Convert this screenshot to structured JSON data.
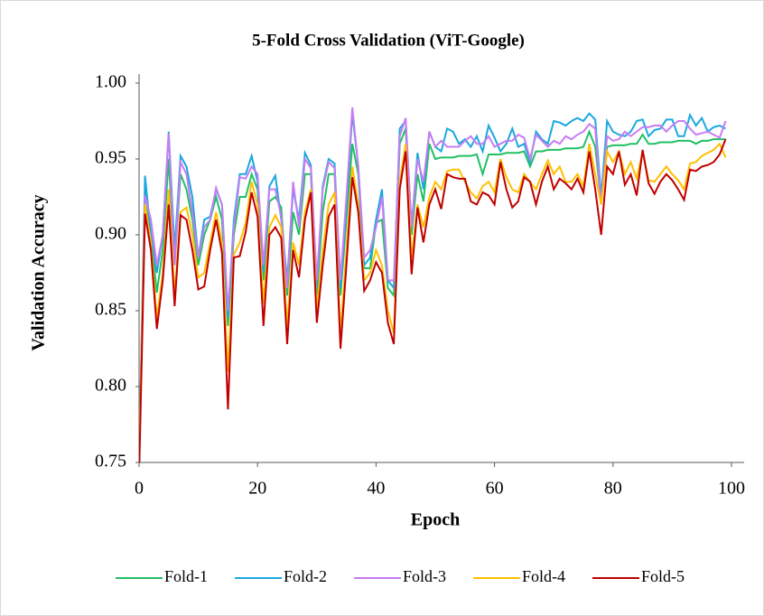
{
  "chart_data": {
    "type": "line",
    "title": "5-Fold Cross Validation (ViT-Google)",
    "x_label": "Epoch",
    "y_label": "Validation Accuracy",
    "xlim": [
      0,
      100
    ],
    "ylim": [
      0.75,
      1.0
    ],
    "xticks": [
      0,
      20,
      40,
      60,
      80,
      100
    ],
    "yticks": [
      {
        "value": 0.75,
        "label": "0.75"
      },
      {
        "value": 0.8,
        "label": "0.80"
      },
      {
        "value": 0.85,
        "label": "0.85"
      },
      {
        "value": 0.9,
        "label": "0.90"
      },
      {
        "value": 0.95,
        "label": "0.95"
      },
      {
        "value": 1.0,
        "label": "1.00"
      }
    ],
    "grid": false,
    "legend": "bottom",
    "x": [
      0,
      1,
      2,
      3,
      4,
      5,
      6,
      7,
      8,
      9,
      10,
      11,
      12,
      13,
      14,
      15,
      16,
      17,
      18,
      19,
      20,
      21,
      22,
      23,
      24,
      25,
      26,
      27,
      28,
      29,
      30,
      31,
      32,
      33,
      34,
      35,
      36,
      37,
      38,
      39,
      40,
      41,
      42,
      43,
      44,
      45,
      46,
      47,
      48,
      49,
      50,
      51,
      52,
      53,
      54,
      55,
      56,
      57,
      58,
      59,
      60,
      61,
      62,
      63,
      64,
      65,
      66,
      67,
      68,
      69,
      70,
      71,
      72,
      73,
      74,
      75,
      76,
      77,
      78,
      79,
      80,
      81,
      82,
      83,
      84,
      85,
      86,
      87,
      88,
      89,
      90,
      91,
      92,
      93,
      94,
      95,
      96,
      97,
      98,
      99
    ],
    "series": [
      {
        "name": "Fold-1",
        "color": "#21c064",
        "values": [
          0.75,
          0.93,
          0.9,
          0.862,
          0.89,
          0.95,
          0.88,
          0.94,
          0.93,
          0.91,
          0.88,
          0.9,
          0.91,
          0.925,
          0.91,
          0.84,
          0.9,
          0.925,
          0.925,
          0.94,
          0.93,
          0.87,
          0.922,
          0.925,
          0.918,
          0.86,
          0.915,
          0.9,
          0.94,
          0.94,
          0.86,
          0.915,
          0.94,
          0.94,
          0.86,
          0.91,
          0.96,
          0.94,
          0.878,
          0.878,
          0.908,
          0.91,
          0.865,
          0.86,
          0.96,
          0.97,
          0.9,
          0.94,
          0.922,
          0.96,
          0.95,
          0.951,
          0.951,
          0.951,
          0.952,
          0.952,
          0.952,
          0.953,
          0.94,
          0.953,
          0.953,
          0.953,
          0.954,
          0.954,
          0.954,
          0.955,
          0.945,
          0.955,
          0.955,
          0.956,
          0.956,
          0.956,
          0.957,
          0.957,
          0.957,
          0.958,
          0.968,
          0.958,
          0.922,
          0.958,
          0.959,
          0.959,
          0.959,
          0.96,
          0.96,
          0.966,
          0.96,
          0.96,
          0.961,
          0.961,
          0.961,
          0.962,
          0.962,
          0.962,
          0.96,
          0.962,
          0.962,
          0.963,
          0.963,
          0.963
        ]
      },
      {
        "name": "Fold-2",
        "color": "#1aa8e0",
        "values": [
          0.75,
          0.939,
          0.9,
          0.875,
          0.9,
          0.968,
          0.89,
          0.952,
          0.945,
          0.925,
          0.885,
          0.91,
          0.912,
          0.93,
          0.92,
          0.845,
          0.91,
          0.94,
          0.94,
          0.952,
          0.935,
          0.875,
          0.932,
          0.939,
          0.91,
          0.87,
          0.93,
          0.91,
          0.954,
          0.946,
          0.865,
          0.932,
          0.95,
          0.947,
          0.865,
          0.92,
          0.98,
          0.945,
          0.88,
          0.885,
          0.91,
          0.93,
          0.87,
          0.865,
          0.97,
          0.975,
          0.905,
          0.954,
          0.93,
          0.968,
          0.958,
          0.955,
          0.97,
          0.968,
          0.96,
          0.963,
          0.958,
          0.965,
          0.955,
          0.972,
          0.964,
          0.955,
          0.96,
          0.97,
          0.958,
          0.96,
          0.948,
          0.968,
          0.963,
          0.96,
          0.975,
          0.974,
          0.972,
          0.975,
          0.977,
          0.975,
          0.98,
          0.976,
          0.925,
          0.975,
          0.968,
          0.966,
          0.965,
          0.968,
          0.975,
          0.976,
          0.965,
          0.969,
          0.97,
          0.976,
          0.976,
          0.965,
          0.965,
          0.979,
          0.972,
          0.977,
          0.968,
          0.971,
          0.972,
          0.97
        ]
      },
      {
        "name": "Fold-3",
        "color": "#c77cf2",
        "values": [
          0.75,
          0.926,
          0.91,
          0.88,
          0.9,
          0.967,
          0.88,
          0.948,
          0.94,
          0.915,
          0.885,
          0.905,
          0.91,
          0.931,
          0.92,
          0.85,
          0.905,
          0.938,
          0.937,
          0.945,
          0.94,
          0.88,
          0.93,
          0.93,
          0.912,
          0.865,
          0.935,
          0.905,
          0.95,
          0.944,
          0.87,
          0.93,
          0.948,
          0.944,
          0.87,
          0.925,
          0.984,
          0.945,
          0.885,
          0.89,
          0.905,
          0.925,
          0.87,
          0.87,
          0.965,
          0.977,
          0.905,
          0.95,
          0.935,
          0.968,
          0.958,
          0.962,
          0.958,
          0.958,
          0.958,
          0.962,
          0.965,
          0.96,
          0.96,
          0.965,
          0.958,
          0.96,
          0.962,
          0.962,
          0.966,
          0.964,
          0.95,
          0.966,
          0.962,
          0.958,
          0.962,
          0.96,
          0.965,
          0.963,
          0.966,
          0.968,
          0.973,
          0.97,
          0.92,
          0.965,
          0.962,
          0.963,
          0.968,
          0.965,
          0.968,
          0.971,
          0.971,
          0.972,
          0.972,
          0.968,
          0.972,
          0.975,
          0.975,
          0.97,
          0.966,
          0.967,
          0.968,
          0.966,
          0.964,
          0.975
        ]
      },
      {
        "name": "Fold-4",
        "color": "#ffc000",
        "values": [
          0.75,
          0.92,
          0.895,
          0.845,
          0.875,
          0.93,
          0.86,
          0.915,
          0.918,
          0.9,
          0.872,
          0.875,
          0.895,
          0.915,
          0.895,
          0.81,
          0.887,
          0.895,
          0.908,
          0.935,
          0.92,
          0.855,
          0.905,
          0.913,
          0.905,
          0.84,
          0.895,
          0.88,
          0.915,
          0.93,
          0.85,
          0.89,
          0.92,
          0.928,
          0.835,
          0.89,
          0.945,
          0.92,
          0.87,
          0.875,
          0.89,
          0.88,
          0.85,
          0.835,
          0.935,
          0.96,
          0.885,
          0.92,
          0.905,
          0.925,
          0.935,
          0.93,
          0.942,
          0.943,
          0.943,
          0.935,
          0.928,
          0.924,
          0.932,
          0.935,
          0.928,
          0.95,
          0.938,
          0.93,
          0.928,
          0.94,
          0.935,
          0.93,
          0.94,
          0.949,
          0.94,
          0.945,
          0.935,
          0.935,
          0.94,
          0.932,
          0.96,
          0.94,
          0.92,
          0.955,
          0.948,
          0.955,
          0.94,
          0.948,
          0.937,
          0.955,
          0.936,
          0.935,
          0.94,
          0.945,
          0.94,
          0.936,
          0.93,
          0.947,
          0.948,
          0.952,
          0.954,
          0.956,
          0.96,
          0.951
        ]
      },
      {
        "name": "Fold-5",
        "color": "#c00000",
        "values": [
          0.74,
          0.914,
          0.89,
          0.838,
          0.87,
          0.92,
          0.853,
          0.913,
          0.91,
          0.89,
          0.864,
          0.866,
          0.89,
          0.91,
          0.888,
          0.785,
          0.885,
          0.886,
          0.902,
          0.928,
          0.912,
          0.84,
          0.9,
          0.905,
          0.898,
          0.828,
          0.89,
          0.872,
          0.91,
          0.928,
          0.842,
          0.88,
          0.912,
          0.92,
          0.825,
          0.88,
          0.938,
          0.915,
          0.863,
          0.87,
          0.882,
          0.875,
          0.842,
          0.828,
          0.93,
          0.955,
          0.874,
          0.918,
          0.895,
          0.92,
          0.93,
          0.917,
          0.94,
          0.938,
          0.937,
          0.937,
          0.922,
          0.92,
          0.928,
          0.926,
          0.92,
          0.948,
          0.93,
          0.918,
          0.922,
          0.938,
          0.935,
          0.92,
          0.935,
          0.945,
          0.93,
          0.937,
          0.934,
          0.93,
          0.937,
          0.928,
          0.955,
          0.93,
          0.9,
          0.945,
          0.94,
          0.955,
          0.933,
          0.94,
          0.926,
          0.956,
          0.934,
          0.927,
          0.935,
          0.94,
          0.936,
          0.93,
          0.923,
          0.943,
          0.942,
          0.945,
          0.946,
          0.948,
          0.953,
          0.963
        ]
      }
    ]
  }
}
